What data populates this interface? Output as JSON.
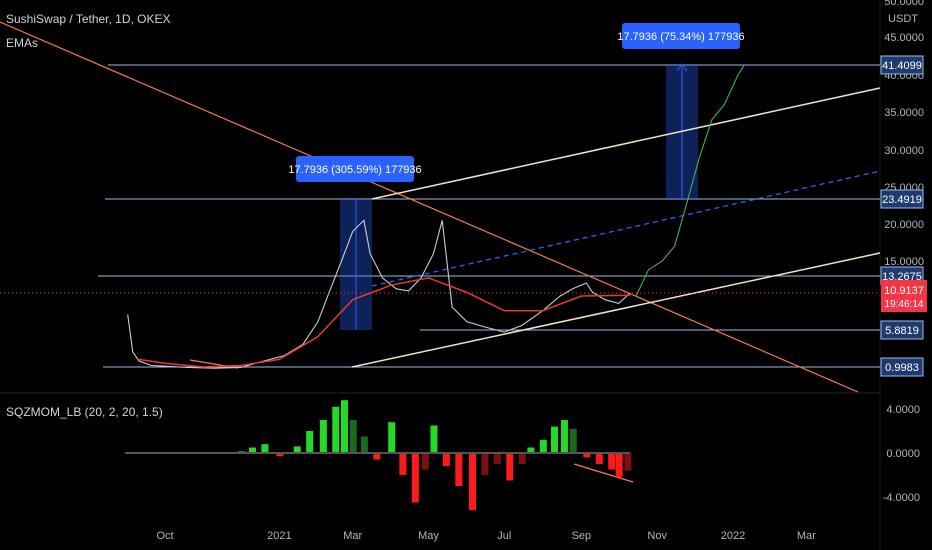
{
  "header": {
    "title": "SushiSwap / Tether, 1D, OKEX",
    "overlay": "EMAs",
    "indicator": "SQZMOM_LB (20, 2, 20, 1.5)"
  },
  "price_axis": {
    "unit": "USDT",
    "ticks": [
      "50.0000",
      "45.0000",
      "40.0000",
      "35.0000",
      "30.0000",
      "25.0000",
      "20.0000",
      "15.0000"
    ]
  },
  "indicator_axis": {
    "ticks": [
      "4.0000",
      "0.0000",
      "-4.0000"
    ]
  },
  "time_axis": {
    "ticks": [
      "Oct",
      "2021",
      "Mar",
      "May",
      "Jul",
      "Sep",
      "Nov",
      "2022",
      "Mar"
    ]
  },
  "levels": [
    {
      "label": "41.4099",
      "value": 41.4099
    },
    {
      "label": "23.4919",
      "value": 23.4919
    },
    {
      "label": "13.2675",
      "value": 13.2675
    },
    {
      "label": "5.8819",
      "value": 5.8819
    },
    {
      "label": "0.9983",
      "value": 0.9983
    }
  ],
  "current_price": {
    "label": "10.9137",
    "countdown": "19:46:14",
    "value": 10.9137
  },
  "annotations": [
    {
      "text": "17.7936 (305.59%) 177936"
    },
    {
      "text": "17.7936 (75.34%) 177936"
    }
  ],
  "colors": {
    "background": "#000000",
    "level_line": "#9fb8e8",
    "level_label_bg": "#1e3a6e",
    "price_label_bg": "#f23645",
    "measure_box": "#2962ff",
    "trend_down": "#f57c45",
    "channel": "#efe6c8",
    "midline": "#2962ff",
    "projection": "#4caf50",
    "histogram_up_strong": "#26d926",
    "histogram_up_weak": "#1b6b1b",
    "histogram_down_strong": "#ff1a1a",
    "histogram_down_weak": "#7a1010",
    "ema_red": "#e53935",
    "ema_orange": "#ff9800",
    "ema_green": "#66bb6a",
    "ema_blue": "#5c6bc0"
  },
  "chart_data": {
    "type": "line",
    "title": "SushiSwap / Tether, 1D, OKEX",
    "ylabel": "USDT",
    "ylim": [
      0,
      50
    ],
    "series": [
      {
        "name": "SushiSwap / Tether",
        "x": [
          "2020-09-01",
          "2020-09-05",
          "2020-09-10",
          "2020-09-20",
          "2020-10-01",
          "2020-10-20",
          "2020-11-10",
          "2020-12-01",
          "2020-12-20",
          "2021-01-05",
          "2021-01-20",
          "2021-02-01",
          "2021-02-10",
          "2021-02-20",
          "2021-03-01",
          "2021-03-10",
          "2021-03-15",
          "2021-03-25",
          "2021-04-05",
          "2021-04-15",
          "2021-04-25",
          "2021-05-05",
          "2021-05-12",
          "2021-05-20",
          "2021-06-01",
          "2021-06-15",
          "2021-07-01",
          "2021-07-15",
          "2021-08-01",
          "2021-08-15",
          "2021-08-25",
          "2021-09-05",
          "2021-09-10",
          "2021-09-20",
          "2021-10-01",
          "2021-10-10"
        ],
        "values": [
          8.0,
          3.0,
          1.8,
          1.2,
          1.1,
          0.9,
          0.75,
          0.9,
          1.8,
          2.5,
          4.0,
          7.0,
          11.0,
          15.0,
          19.0,
          20.5,
          16.0,
          13.0,
          11.5,
          11.2,
          13.0,
          16.0,
          20.5,
          9.0,
          7.0,
          6.3,
          5.6,
          6.5,
          8.5,
          10.5,
          11.5,
          12.3,
          11.0,
          10.0,
          9.5,
          10.9
        ]
      },
      {
        "name": "EMA",
        "x": [
          "2020-09-10",
          "2020-10-01",
          "2020-11-01",
          "2020-12-01",
          "2021-01-01",
          "2021-02-01",
          "2021-03-01",
          "2021-04-01",
          "2021-05-01",
          "2021-06-01",
          "2021-07-01",
          "2021-08-01",
          "2021-09-01",
          "2021-10-10"
        ],
        "values": [
          2.0,
          1.5,
          1.0,
          1.2,
          2.0,
          5.0,
          10.0,
          12.0,
          13.0,
          11.0,
          8.5,
          8.5,
          10.5,
          10.6
        ]
      },
      {
        "name": "Projection",
        "x": [
          "2021-10-15",
          "2021-10-25",
          "2021-11-05",
          "2021-11-15",
          "2021-11-25",
          "2021-12-05",
          "2021-12-15",
          "2021-12-25",
          "2022-01-05",
          "2022-01-10"
        ],
        "values": [
          10.5,
          14.0,
          15.0,
          17.0,
          23.0,
          29.0,
          34.0,
          36.0,
          40.0,
          41.4
        ]
      }
    ]
  },
  "indicator_data": {
    "type": "bar",
    "name": "SQZMOM_LB",
    "ylim": [
      -5.5,
      5.8
    ],
    "series": [
      {
        "x": "2020-12-01",
        "value": 0.15
      },
      {
        "x": "2020-12-10",
        "value": 0.5
      },
      {
        "x": "2020-12-20",
        "value": 0.8
      },
      {
        "x": "2021-01-01",
        "value": -0.3
      },
      {
        "x": "2021-01-15",
        "value": 0.6
      },
      {
        "x": "2021-01-25",
        "value": 2.0
      },
      {
        "x": "2021-02-05",
        "value": 3.0
      },
      {
        "x": "2021-02-15",
        "value": 4.2
      },
      {
        "x": "2021-02-22",
        "value": 4.8
      },
      {
        "x": "2021-03-01",
        "value": 3.0
      },
      {
        "x": "2021-03-10",
        "value": 1.5
      },
      {
        "x": "2021-03-20",
        "value": -0.6
      },
      {
        "x": "2021-04-01",
        "value": 2.8
      },
      {
        "x": "2021-04-10",
        "value": -2.0
      },
      {
        "x": "2021-04-20",
        "value": -4.5
      },
      {
        "x": "2021-04-28",
        "value": -1.5
      },
      {
        "x": "2021-05-05",
        "value": 2.5
      },
      {
        "x": "2021-05-15",
        "value": -1.2
      },
      {
        "x": "2021-05-25",
        "value": -3.0
      },
      {
        "x": "2021-06-05",
        "value": -5.2
      },
      {
        "x": "2021-06-15",
        "value": -2.0
      },
      {
        "x": "2021-06-25",
        "value": -1.0
      },
      {
        "x": "2021-07-05",
        "value": -2.5
      },
      {
        "x": "2021-07-15",
        "value": -1.0
      },
      {
        "x": "2021-07-22",
        "value": 0.5
      },
      {
        "x": "2021-08-01",
        "value": 1.2
      },
      {
        "x": "2021-08-10",
        "value": 2.4
      },
      {
        "x": "2021-08-18",
        "value": 3.0
      },
      {
        "x": "2021-08-25",
        "value": 2.2
      },
      {
        "x": "2021-09-05",
        "value": -0.4
      },
      {
        "x": "2021-09-15",
        "value": -1.0
      },
      {
        "x": "2021-09-25",
        "value": -1.5
      },
      {
        "x": "2021-10-01",
        "value": -2.2
      },
      {
        "x": "2021-10-08",
        "value": -1.6
      }
    ]
  }
}
